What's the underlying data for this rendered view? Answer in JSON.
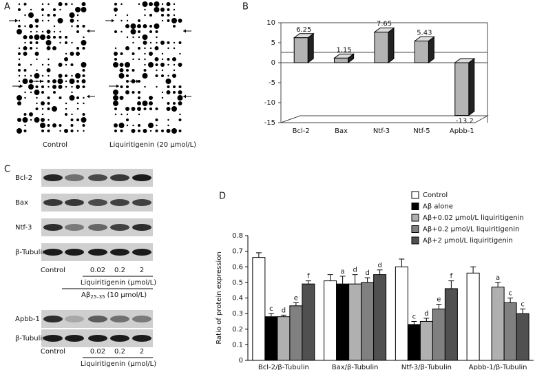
{
  "panel_labels": [
    "A",
    "B",
    "C",
    "D"
  ],
  "panel_a": {
    "labels": [
      "Control",
      "Liquiritigenin (20 μmol/L)"
    ]
  },
  "panel_c": {
    "upper": {
      "rows": [
        "Bcl-2",
        "Bax",
        "Ntf-3",
        "β-Tubulin"
      ],
      "lanes": [
        "Control",
        "0.02",
        "0.2",
        "2"
      ],
      "dose_label": "Liquiritigenin (μmol/L)",
      "treatment": {
        "prefix": "Aβ",
        "subscript": "25–35",
        "suffix": "(10 μmol/L)"
      }
    },
    "lower": {
      "rows": [
        "Apbb-1",
        "β-Tubulin"
      ],
      "lanes": [
        "Control",
        "0.02",
        "0.2",
        "2"
      ],
      "dose_label": "Liquiritigenin (μmol/L)"
    }
  },
  "chart_data": [
    {
      "type": "bar3d",
      "categories": [
        "Bcl-2",
        "Bax",
        "Ntf-3",
        "Ntf-5",
        "Apbb-1"
      ],
      "values": [
        6.25,
        1.15,
        7.65,
        5.43,
        -13.2
      ],
      "color": "#b4b4b4",
      "ylim": [
        -15,
        10
      ],
      "yticks": [
        -15,
        -10,
        -5,
        0,
        5,
        10
      ]
    },
    {
      "type": "grouped_bar",
      "ylabel": "Ratio of protein expression",
      "categories": [
        "Bcl-2/β-Tubulin",
        "Bax/β-Tubulin",
        "Ntf-3/β-Tubulin",
        "Apbb-1/β-Tubulin"
      ],
      "series": [
        {
          "name": "Control",
          "color": "#ffffff",
          "values": [
            0.66,
            0.51,
            0.6,
            0.56
          ],
          "errors": [
            0.03,
            0.04,
            0.05,
            0.04
          ],
          "annotations": [
            null,
            null,
            null,
            null
          ]
        },
        {
          "name": "Aβ alone",
          "color": "#000000",
          "values": [
            0.28,
            0.49,
            0.23,
            null
          ],
          "errors": [
            0.02,
            0.05,
            0.02,
            null
          ],
          "annotations": [
            "c",
            "a",
            "c",
            null
          ]
        },
        {
          "name": "Aβ+0.02 μmol/L liquiritigenin",
          "color": "#b0b0b0",
          "values": [
            0.28,
            0.49,
            0.25,
            0.47
          ],
          "errors": [
            0.01,
            0.06,
            0.02,
            0.03
          ],
          "annotations": [
            "d",
            "d",
            "d",
            "a"
          ]
        },
        {
          "name": "Aβ+0.2 μmol/L liquiritigenin",
          "color": "#808080",
          "values": [
            0.35,
            0.5,
            0.33,
            0.37
          ],
          "errors": [
            0.02,
            0.03,
            0.03,
            0.03
          ],
          "annotations": [
            "e",
            "d",
            "e",
            "c"
          ]
        },
        {
          "name": "Aβ+2 μmol/L liquiritigenin",
          "color": "#505050",
          "values": [
            0.49,
            0.55,
            0.46,
            0.3
          ],
          "errors": [
            0.02,
            0.03,
            0.05,
            0.03
          ],
          "annotations": [
            "f",
            "d",
            "f",
            "c"
          ]
        }
      ],
      "ylim": [
        0,
        0.8
      ],
      "yticks": [
        0,
        0.1,
        0.2,
        0.3,
        0.4,
        0.5,
        0.6,
        0.7,
        0.8
      ]
    }
  ]
}
